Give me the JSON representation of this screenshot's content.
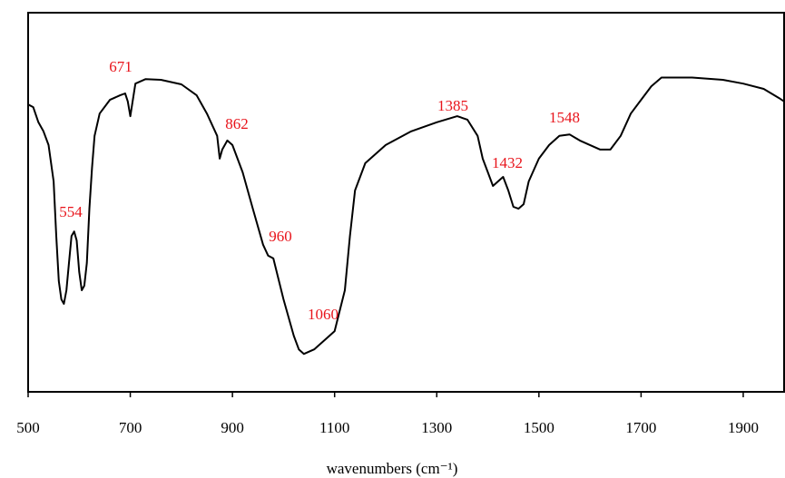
{
  "chart_data": {
    "type": "line",
    "x_label": "wavenumbers (cm⁻¹)",
    "x": [
      500,
      510,
      520,
      530,
      540,
      550,
      555,
      560,
      565,
      570,
      575,
      580,
      585,
      590,
      595,
      600,
      605,
      610,
      615,
      620,
      625,
      630,
      640,
      660,
      680,
      690,
      695,
      700,
      705,
      710,
      730,
      760,
      800,
      830,
      850,
      870,
      875,
      880,
      890,
      900,
      920,
      940,
      960,
      970,
      980,
      1000,
      1020,
      1030,
      1040,
      1060,
      1080,
      1100,
      1120,
      1130,
      1140,
      1160,
      1200,
      1250,
      1300,
      1340,
      1360,
      1380,
      1390,
      1400,
      1410,
      1420,
      1430,
      1440,
      1450,
      1460,
      1470,
      1480,
      1500,
      1520,
      1540,
      1560,
      1580,
      1600,
      1620,
      1640,
      1660,
      1680,
      1700,
      1720,
      1740,
      1800,
      1860,
      1900,
      1940,
      1970,
      1980
    ],
    "series": [
      {
        "color": "#000000",
        "values": [
          75.8,
          75.1,
          71.1,
          68.7,
          65.1,
          55.5,
          41.1,
          29.2,
          24.4,
          23.2,
          26.8,
          34.0,
          41.1,
          42.3,
          39.9,
          31.6,
          26.8,
          28.0,
          34.0,
          48.3,
          59.1,
          67.5,
          73.4,
          77.0,
          78.2,
          78.7,
          76.6,
          72.7,
          77.0,
          81.3,
          82.5,
          82.3,
          81.1,
          78.2,
          73.4,
          67.5,
          61.5,
          63.9,
          66.3,
          65.1,
          57.9,
          48.3,
          38.8,
          35.9,
          35.2,
          24.4,
          14.8,
          11.2,
          10.0,
          11.2,
          13.6,
          16.0,
          26.8,
          41.1,
          53.1,
          60.3,
          65.1,
          68.7,
          71.1,
          72.7,
          71.8,
          67.5,
          61.5,
          57.9,
          54.3,
          55.5,
          56.7,
          53.1,
          48.8,
          48.3,
          49.5,
          55.5,
          61.5,
          65.1,
          67.5,
          67.9,
          66.3,
          65.1,
          63.9,
          63.9,
          67.5,
          73.4,
          77.0,
          80.6,
          82.9,
          82.9,
          82.3,
          81.3,
          79.9,
          77.5,
          76.6
        ]
      }
    ],
    "annotations": [
      "554",
      "671",
      "862",
      "960",
      "1060",
      "1385",
      "1432",
      "1548"
    ],
    "xlim": [
      500,
      1980
    ],
    "xticks": [
      500,
      700,
      900,
      1100,
      1300,
      1500,
      1700,
      1900
    ],
    "ylim": [
      0,
      100
    ]
  }
}
